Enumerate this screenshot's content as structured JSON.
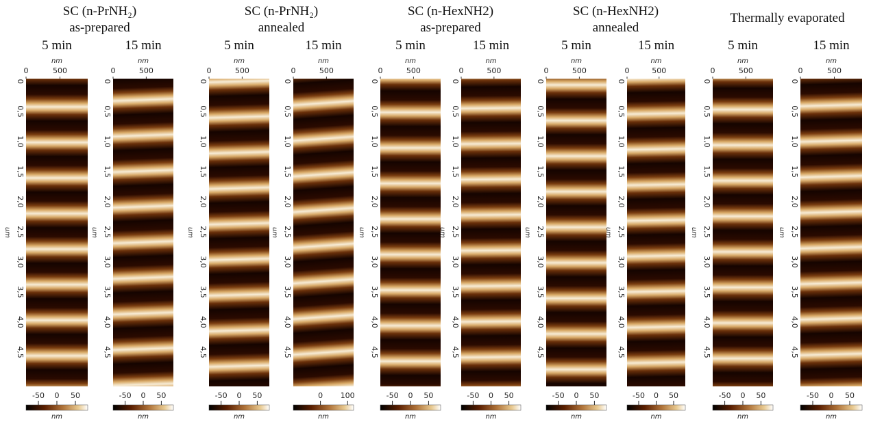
{
  "groups": [
    {
      "title_lines": [
        "SC (n-PrNH₂)",
        "as-prepared"
      ],
      "panels": [
        {
          "time": "5 min",
          "x_axis": {
            "label": "nm",
            "ticks": [
              "0",
              "500"
            ]
          },
          "y_axis": {
            "label": "um",
            "ticks": [
              "0",
              "0,5",
              "1,0",
              "1,5",
              "2,0",
              "2,5",
              "3,0",
              "3,5",
              "4,0",
              "4,5"
            ]
          },
          "colorbar": {
            "label": "nm",
            "ticks": [
              "-50",
              "0",
              "50"
            ]
          }
        },
        {
          "time": "15 min",
          "y_axis": {
            "label": "um",
            "ticks": [
              "0",
              "0,5",
              "1,0",
              "1,5",
              "2,0",
              "2,5",
              "3,0",
              "3,5",
              "4,0",
              "4,5"
            ]
          },
          "x_axis": {
            "label": "nm",
            "ticks": [
              "0",
              "500"
            ]
          },
          "colorbar": {
            "label": "nm",
            "ticks": [
              "-50",
              "0",
              "50"
            ]
          }
        }
      ]
    },
    {
      "title_lines": [
        "SC (n-PrNH₂)",
        "annealed"
      ],
      "panels": [
        {
          "time": "5 min",
          "x_axis": {
            "label": "nm",
            "ticks": [
              "0",
              "500"
            ]
          },
          "y_axis": {
            "label": "um",
            "ticks": [
              "0",
              "0,5",
              "1,0",
              "1,5",
              "2,0",
              "2,5",
              "3,0",
              "3,5",
              "4,0",
              "4,5"
            ]
          },
          "colorbar": {
            "label": "nm",
            "ticks": [
              "-50",
              "0",
              "50"
            ]
          }
        },
        {
          "time": "15 min",
          "x_axis": {
            "label": "nm",
            "ticks": [
              "0",
              "500"
            ]
          },
          "y_axis": {
            "label": "um",
            "ticks": [
              "0",
              "0,5",
              "1,0",
              "1,5",
              "2,0",
              "2,5",
              "3,0",
              "3,5",
              "4,0",
              "4,5"
            ]
          },
          "colorbar": {
            "label": "nm",
            "ticks": [
              "0",
              "100"
            ]
          }
        }
      ]
    },
    {
      "title_lines": [
        "SC (n-HexNH2)",
        "as-prepared"
      ],
      "panels": [
        {
          "time": "5 min",
          "x_axis": {
            "label": "nm",
            "ticks": [
              "0",
              "500"
            ]
          },
          "y_axis": {
            "label": "um",
            "ticks": [
              "0",
              "0,5",
              "1,0",
              "1,5",
              "2,0",
              "2,5",
              "3,0",
              "3,5",
              "4,0",
              "4,5"
            ]
          },
          "colorbar": {
            "label": "nm",
            "ticks": [
              "-50",
              "0",
              "50"
            ]
          }
        },
        {
          "time": "15 min",
          "x_axis": {
            "label": "nm",
            "ticks": [
              "0",
              "500"
            ]
          },
          "y_axis": {
            "label": "um",
            "ticks": [
              "0",
              "0,5",
              "1,0",
              "1,5",
              "2,0",
              "2,5",
              "3,0",
              "3,5",
              "4,0",
              "4,5"
            ]
          },
          "colorbar": {
            "label": "nm",
            "ticks": [
              "-50",
              "0",
              "50"
            ]
          }
        }
      ]
    },
    {
      "title_lines": [
        "SC (n-HexNH2)",
        "annealed"
      ],
      "panels": [
        {
          "time": "5 min",
          "x_axis": {
            "label": "nm",
            "ticks": [
              "0",
              "500"
            ]
          },
          "y_axis": {
            "label": "um",
            "ticks": [
              "0",
              "0,5",
              "1,0",
              "1,5",
              "2,0",
              "2,5",
              "3,0",
              "3,5",
              "4,0",
              "4,5"
            ]
          },
          "colorbar": {
            "label": "nm",
            "ticks": [
              "-50",
              "0",
              "50"
            ]
          }
        },
        {
          "time": "15 min",
          "x_axis": {
            "label": "nm",
            "ticks": [
              "0",
              "500"
            ]
          },
          "y_axis": {
            "label": "um",
            "ticks": [
              "0",
              "0,5",
              "1,0",
              "1,5",
              "2,0",
              "2,5",
              "3,0",
              "3,5",
              "4,0",
              "4,5"
            ]
          },
          "colorbar": {
            "label": "nm",
            "ticks": [
              "-50",
              "0",
              "50"
            ]
          }
        }
      ]
    },
    {
      "title_lines": [
        "Thermally evaporated"
      ],
      "panels": [
        {
          "time": "5 min",
          "x_axis": {
            "label": "nm",
            "ticks": [
              "0",
              "500"
            ]
          },
          "y_axis": {
            "label": "um",
            "ticks": [
              "0",
              "0,5",
              "1,0",
              "1,5",
              "2,0",
              "2,5",
              "3,0",
              "3,5",
              "4,0",
              "4,5"
            ]
          },
          "colorbar": {
            "label": "nm",
            "ticks": [
              "-50",
              "0",
              "50"
            ]
          }
        },
        {
          "time": "15 min",
          "x_axis": {
            "label": "nm",
            "ticks": [
              "0",
              "500"
            ]
          },
          "y_axis": {
            "label": "um",
            "ticks": [
              "0",
              "0,5",
              "1,0",
              "1,5",
              "2,0",
              "2,5",
              "3,0",
              "3,5",
              "4,0",
              "4,5"
            ]
          },
          "colorbar": {
            "label": "nm",
            "ticks": [
              "-50",
              "0",
              "50"
            ]
          }
        }
      ]
    }
  ]
}
